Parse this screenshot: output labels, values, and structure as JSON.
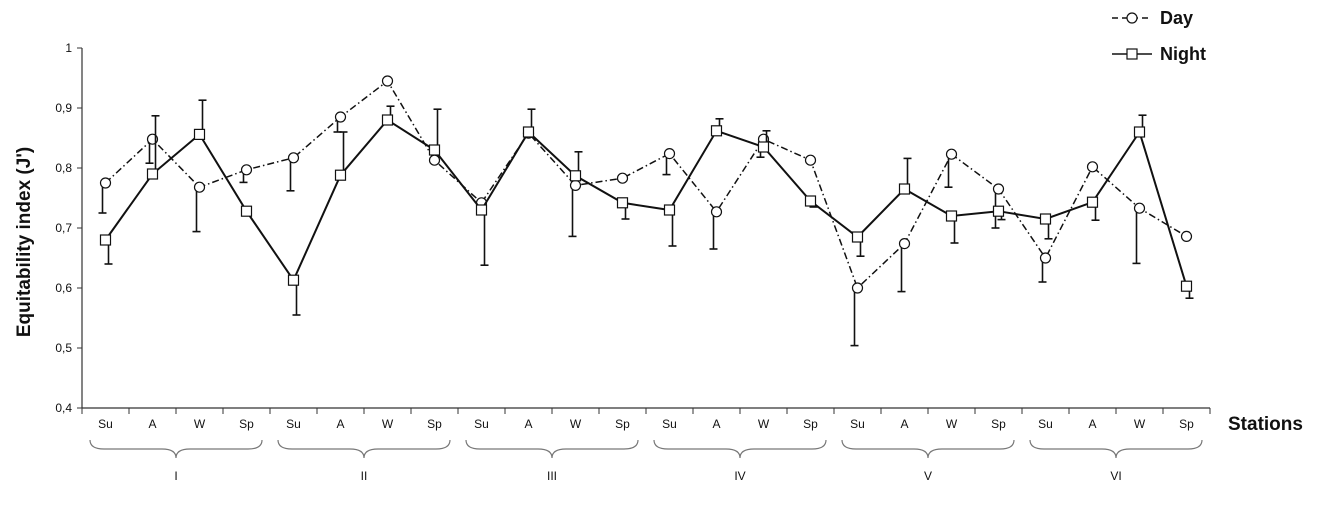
{
  "chart_data": {
    "type": "line",
    "title": "",
    "xlabel": "Stations",
    "ylabel": "Equitability index (J')",
    "ylim": [
      0.4,
      1.0
    ],
    "yticks": [
      "0,4",
      "0,5",
      "0,6",
      "0,7",
      "0,8",
      "0,9",
      "1"
    ],
    "ytick_values": [
      0.4,
      0.5,
      0.6,
      0.7,
      0.8,
      0.9,
      1.0
    ],
    "categories": [
      "Su",
      "A",
      "W",
      "Sp",
      "Su",
      "A",
      "W",
      "Sp",
      "Su",
      "A",
      "W",
      "Sp",
      "Su",
      "A",
      "W",
      "Sp",
      "Su",
      "A",
      "W",
      "Sp",
      "Su",
      "A",
      "W",
      "Sp"
    ],
    "stations": [
      "I",
      "II",
      "III",
      "IV",
      "V",
      "VI"
    ],
    "legend_position": "top-right",
    "grid": false,
    "series": [
      {
        "name": "Day",
        "marker": "circle",
        "line_style": "dash-dot",
        "color": "#111111",
        "values": [
          0.775,
          0.848,
          0.768,
          0.797,
          0.817,
          0.885,
          0.945,
          0.813,
          0.742,
          0.858,
          0.771,
          0.783,
          0.824,
          0.727,
          0.848,
          0.813,
          0.6,
          0.674,
          0.823,
          0.765,
          0.65,
          0.802,
          0.733,
          0.686
        ],
        "errors": [
          0.05,
          0.04,
          0.074,
          0.021,
          0.055,
          0.025,
          0,
          0,
          0,
          0,
          0.085,
          0,
          0.035,
          0.062,
          0.03,
          0,
          0.096,
          0.08,
          0.055,
          0.065,
          0.04,
          0,
          0.092,
          0
        ]
      },
      {
        "name": "Night",
        "marker": "square",
        "line_style": "solid",
        "color": "#111111",
        "values": [
          0.68,
          0.79,
          0.856,
          0.728,
          0.613,
          0.788,
          0.88,
          0.83,
          0.73,
          0.86,
          0.787,
          0.742,
          0.73,
          0.862,
          0.835,
          0.745,
          0.685,
          0.765,
          0.72,
          0.728,
          0.715,
          0.743,
          0.86,
          0.603
        ],
        "errors": [
          0.04,
          0.097,
          0.057,
          0,
          0.058,
          0.072,
          0.023,
          0.068,
          0.092,
          0.038,
          0.04,
          0.027,
          0.06,
          0.02,
          0.027,
          0.01,
          0.032,
          0.051,
          0.045,
          0.014,
          0.033,
          0.03,
          0.028,
          0.02
        ]
      }
    ]
  }
}
